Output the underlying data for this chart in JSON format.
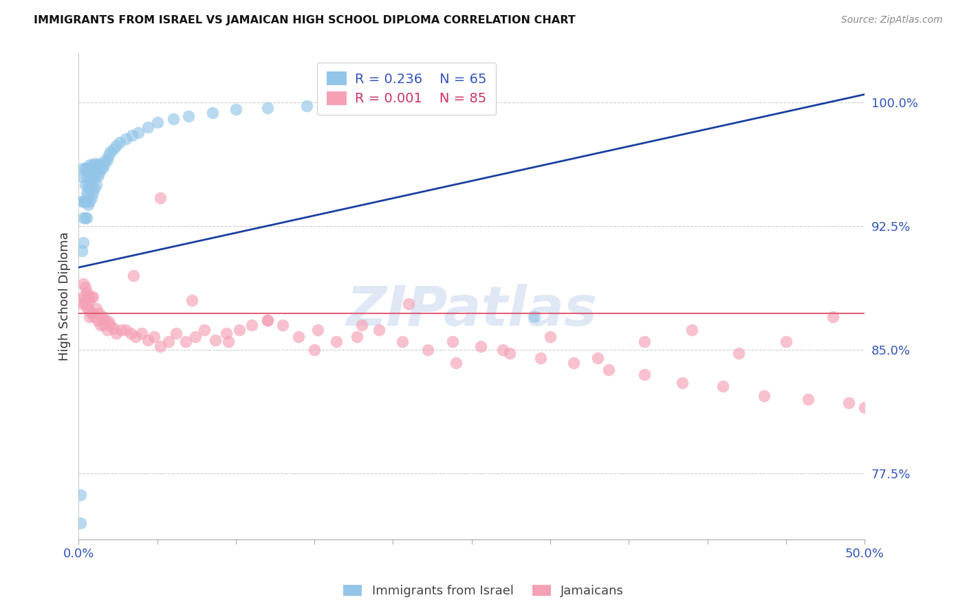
{
  "title": "IMMIGRANTS FROM ISRAEL VS JAMAICAN HIGH SCHOOL DIPLOMA CORRELATION CHART",
  "source": "Source: ZipAtlas.com",
  "ylabel": "High School Diploma",
  "xlim": [
    0.0,
    0.5
  ],
  "ylim": [
    0.735,
    1.03
  ],
  "ytick_labels_right": [
    "77.5%",
    "85.0%",
    "92.5%",
    "100.0%"
  ],
  "ytick_vals_right": [
    0.775,
    0.85,
    0.925,
    1.0
  ],
  "grid_color": "#cccccc",
  "blue_color": "#93c5e8",
  "pink_color": "#f4a0b5",
  "trend_blue": "#1a3fa0",
  "trend_pink": "#e0607a",
  "legend_label_blue": "Immigrants from Israel",
  "legend_label_pink": "Jamaicans",
  "watermark": "ZIPatlas",
  "blue_points_x": [
    0.001,
    0.001,
    0.002,
    0.002,
    0.002,
    0.003,
    0.003,
    0.003,
    0.003,
    0.004,
    0.004,
    0.004,
    0.004,
    0.005,
    0.005,
    0.005,
    0.005,
    0.005,
    0.006,
    0.006,
    0.006,
    0.006,
    0.007,
    0.007,
    0.007,
    0.007,
    0.008,
    0.008,
    0.008,
    0.009,
    0.009,
    0.009,
    0.01,
    0.01,
    0.01,
    0.011,
    0.011,
    0.012,
    0.012,
    0.013,
    0.013,
    0.014,
    0.015,
    0.016,
    0.017,
    0.018,
    0.019,
    0.02,
    0.022,
    0.024,
    0.026,
    0.03,
    0.034,
    0.038,
    0.044,
    0.05,
    0.06,
    0.07,
    0.085,
    0.1,
    0.12,
    0.145,
    0.175,
    0.215,
    0.29
  ],
  "blue_points_y": [
    0.745,
    0.762,
    0.91,
    0.94,
    0.955,
    0.915,
    0.93,
    0.94,
    0.96,
    0.93,
    0.94,
    0.95,
    0.96,
    0.93,
    0.94,
    0.945,
    0.955,
    0.96,
    0.938,
    0.945,
    0.95,
    0.958,
    0.94,
    0.948,
    0.955,
    0.962,
    0.942,
    0.95,
    0.96,
    0.945,
    0.955,
    0.962,
    0.948,
    0.955,
    0.963,
    0.95,
    0.96,
    0.955,
    0.962,
    0.957,
    0.963,
    0.96,
    0.96,
    0.962,
    0.965,
    0.965,
    0.968,
    0.97,
    0.972,
    0.974,
    0.976,
    0.978,
    0.98,
    0.982,
    0.985,
    0.988,
    0.99,
    0.992,
    0.994,
    0.996,
    0.997,
    0.998,
    0.999,
    1.0,
    0.87
  ],
  "pink_points_x": [
    0.001,
    0.002,
    0.003,
    0.003,
    0.004,
    0.004,
    0.005,
    0.005,
    0.006,
    0.006,
    0.007,
    0.007,
    0.008,
    0.008,
    0.009,
    0.009,
    0.01,
    0.011,
    0.012,
    0.013,
    0.014,
    0.015,
    0.016,
    0.017,
    0.018,
    0.019,
    0.02,
    0.022,
    0.024,
    0.027,
    0.03,
    0.033,
    0.036,
    0.04,
    0.044,
    0.048,
    0.052,
    0.057,
    0.062,
    0.068,
    0.074,
    0.08,
    0.087,
    0.094,
    0.102,
    0.11,
    0.12,
    0.13,
    0.14,
    0.152,
    0.164,
    0.177,
    0.191,
    0.206,
    0.222,
    0.238,
    0.256,
    0.274,
    0.294,
    0.315,
    0.337,
    0.36,
    0.384,
    0.41,
    0.436,
    0.464,
    0.49,
    0.5,
    0.48,
    0.45,
    0.42,
    0.39,
    0.36,
    0.33,
    0.3,
    0.27,
    0.24,
    0.21,
    0.18,
    0.15,
    0.12,
    0.095,
    0.072,
    0.052,
    0.035
  ],
  "pink_points_y": [
    0.88,
    0.878,
    0.882,
    0.89,
    0.878,
    0.888,
    0.876,
    0.885,
    0.875,
    0.883,
    0.87,
    0.88,
    0.872,
    0.882,
    0.872,
    0.882,
    0.87,
    0.875,
    0.868,
    0.872,
    0.865,
    0.87,
    0.865,
    0.868,
    0.862,
    0.867,
    0.865,
    0.863,
    0.86,
    0.862,
    0.862,
    0.86,
    0.858,
    0.86,
    0.856,
    0.858,
    0.852,
    0.855,
    0.86,
    0.855,
    0.858,
    0.862,
    0.856,
    0.86,
    0.862,
    0.865,
    0.868,
    0.865,
    0.858,
    0.862,
    0.855,
    0.858,
    0.862,
    0.855,
    0.85,
    0.855,
    0.852,
    0.848,
    0.845,
    0.842,
    0.838,
    0.835,
    0.83,
    0.828,
    0.822,
    0.82,
    0.818,
    0.815,
    0.87,
    0.855,
    0.848,
    0.862,
    0.855,
    0.845,
    0.858,
    0.85,
    0.842,
    0.878,
    0.865,
    0.85,
    0.868,
    0.855,
    0.88,
    0.942,
    0.895
  ],
  "pink_trend_y": 0.872,
  "blue_trend_x0": 0.0,
  "blue_trend_y0": 0.9,
  "blue_trend_x1": 0.5,
  "blue_trend_y1": 1.005
}
